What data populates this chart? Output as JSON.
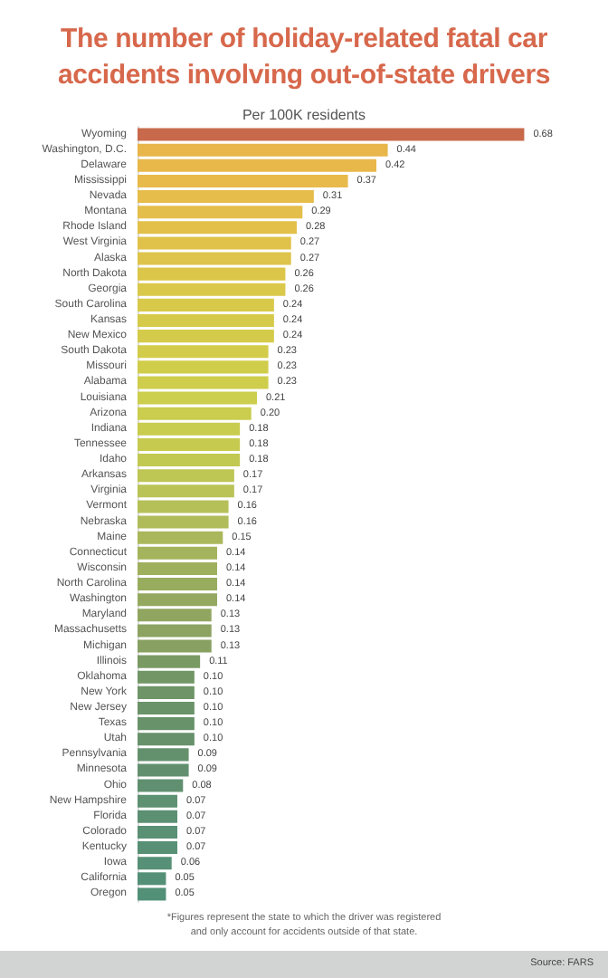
{
  "chart_data": {
    "type": "bar",
    "orientation": "horizontal",
    "title": "The number of holiday-related fatal car accidents involving out-of-state drivers",
    "subtitle": "Per 100K residents",
    "categories": [
      "Wyoming",
      "Washington, D.C.",
      "Delaware",
      "Mississippi",
      "Nevada",
      "Montana",
      "Rhode Island",
      "West Virginia",
      "Alaska",
      "North Dakota",
      "Georgia",
      "South Carolina",
      "Kansas",
      "New Mexico",
      "South Dakota",
      "Missouri",
      "Alabama",
      "Louisiana",
      "Arizona",
      "Indiana",
      "Tennessee",
      "Idaho",
      "Arkansas",
      "Virginia",
      "Vermont",
      "Nebraska",
      "Maine",
      "Connecticut",
      "Wisconsin",
      "North Carolina",
      "Washington",
      "Maryland",
      "Massachusetts",
      "Michigan",
      "Illinois",
      "Oklahoma",
      "New York",
      "New Jersey",
      "Texas",
      "Utah",
      "Pennsylvania",
      "Minnesota",
      "Ohio",
      "New Hampshire",
      "Florida",
      "Colorado",
      "Kentucky",
      "Iowa",
      "California",
      "Oregon"
    ],
    "values": [
      0.68,
      0.44,
      0.42,
      0.37,
      0.31,
      0.29,
      0.28,
      0.27,
      0.27,
      0.26,
      0.26,
      0.24,
      0.24,
      0.24,
      0.23,
      0.23,
      0.23,
      0.21,
      0.2,
      0.18,
      0.18,
      0.18,
      0.17,
      0.17,
      0.16,
      0.16,
      0.15,
      0.14,
      0.14,
      0.14,
      0.14,
      0.13,
      0.13,
      0.13,
      0.11,
      0.1,
      0.1,
      0.1,
      0.1,
      0.1,
      0.09,
      0.09,
      0.08,
      0.07,
      0.07,
      0.07,
      0.07,
      0.06,
      0.05,
      0.05
    ],
    "value_labels": [
      "0.68",
      "0.44",
      "0.42",
      "0.37",
      "0.31",
      "0.29",
      "0.28",
      "0.27",
      "0.27",
      "0.26",
      "0.26",
      "0.24",
      "0.24",
      "0.24",
      "0.23",
      "0.23",
      "0.23",
      "0.21",
      "0.20",
      "0.18",
      "0.18",
      "0.18",
      "0.17",
      "0.17",
      "0.16",
      "0.16",
      "0.15",
      "0.14",
      "0.14",
      "0.14",
      "0.14",
      "0.13",
      "0.13",
      "0.13",
      "0.11",
      "0.10",
      "0.10",
      "0.10",
      "0.10",
      "0.10",
      "0.09",
      "0.09",
      "0.08",
      "0.07",
      "0.07",
      "0.07",
      "0.07",
      "0.06",
      "0.05",
      "0.05"
    ],
    "colors": [
      "#c8694b",
      "#e8b64a",
      "#e8b84a",
      "#e8ba4a",
      "#e6bc4a",
      "#e4be4a",
      "#e2c04a",
      "#e0c24a",
      "#dec44a",
      "#dcc64a",
      "#dac84a",
      "#d8c94a",
      "#d6ca4a",
      "#d4cb4a",
      "#d2cc4a",
      "#d0cd4b",
      "#cecd4c",
      "#ccce4d",
      "#cacd4e",
      "#c8cc4f",
      "#c6cb50",
      "#c2c952",
      "#bec654",
      "#bac356",
      "#b6c058",
      "#b0bc5a",
      "#aab85b",
      "#a4b45c",
      "#9eb05d",
      "#98ac5e",
      "#94a95f",
      "#90a660",
      "#8ca361",
      "#88a062",
      "#7a9a64",
      "#729666",
      "#6e9468",
      "#6b9369",
      "#68926a",
      "#66916b",
      "#64916d",
      "#62906f",
      "#609070",
      "#5e9072",
      "#5c9073",
      "#5a9074",
      "#589075",
      "#569076",
      "#549077",
      "#529078"
    ],
    "grid": false,
    "annotations": [
      "*Figures represent the state to which the driver was registered and only account for accidents outside of that state.",
      "Source: FARS"
    ]
  }
}
